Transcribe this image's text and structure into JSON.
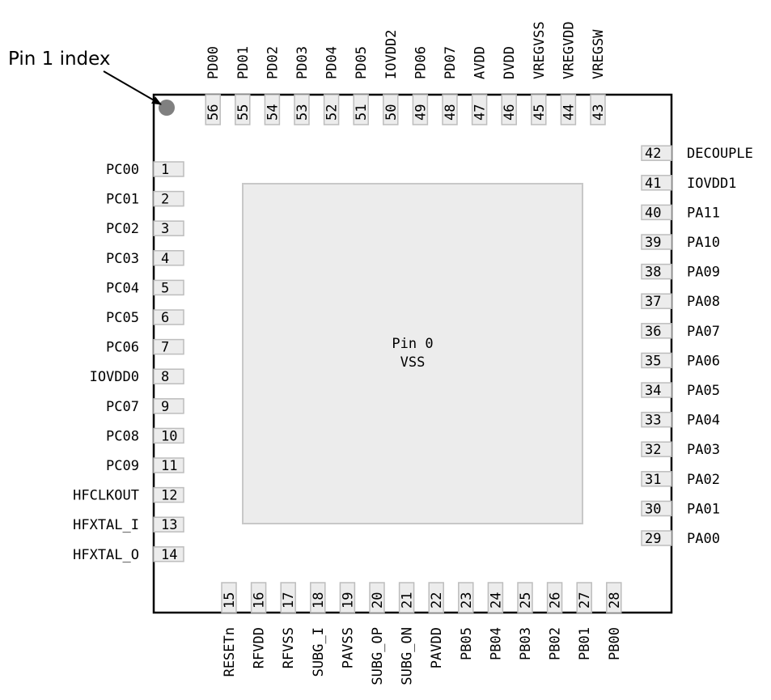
{
  "annotation": {
    "pin1_label": "Pin 1 index"
  },
  "center_pad": {
    "line1": "Pin 0",
    "line2": "VSS"
  },
  "colors": {
    "body_outline": "#000000",
    "pad_fill": "#ececec",
    "pad_stroke": "#c8c8c8",
    "pin_fill": "#ececec",
    "pin_stroke": "#bdbdbd",
    "index_dot": "#808080"
  },
  "pins": {
    "left": [
      {
        "num": "1",
        "name": "PC00"
      },
      {
        "num": "2",
        "name": "PC01"
      },
      {
        "num": "3",
        "name": "PC02"
      },
      {
        "num": "4",
        "name": "PC03"
      },
      {
        "num": "5",
        "name": "PC04"
      },
      {
        "num": "6",
        "name": "PC05"
      },
      {
        "num": "7",
        "name": "PC06"
      },
      {
        "num": "8",
        "name": "IOVDD0"
      },
      {
        "num": "9",
        "name": "PC07"
      },
      {
        "num": "10",
        "name": "PC08"
      },
      {
        "num": "11",
        "name": "PC09"
      },
      {
        "num": "12",
        "name": "HFCLKOUT"
      },
      {
        "num": "13",
        "name": "HFXTAL_I"
      },
      {
        "num": "14",
        "name": "HFXTAL_O"
      }
    ],
    "bottom": [
      {
        "num": "15",
        "name": "RESETn"
      },
      {
        "num": "16",
        "name": "RFVDD"
      },
      {
        "num": "17",
        "name": "RFVSS"
      },
      {
        "num": "18",
        "name": "SUBG_I"
      },
      {
        "num": "19",
        "name": "PAVSS"
      },
      {
        "num": "20",
        "name": "SUBG_OP"
      },
      {
        "num": "21",
        "name": "SUBG_ON"
      },
      {
        "num": "22",
        "name": "PAVDD"
      },
      {
        "num": "23",
        "name": "PB05"
      },
      {
        "num": "24",
        "name": "PB04"
      },
      {
        "num": "25",
        "name": "PB03"
      },
      {
        "num": "26",
        "name": "PB02"
      },
      {
        "num": "27",
        "name": "PB01"
      },
      {
        "num": "28",
        "name": "PB00"
      }
    ],
    "right": [
      {
        "num": "29",
        "name": "PA00"
      },
      {
        "num": "30",
        "name": "PA01"
      },
      {
        "num": "31",
        "name": "PA02"
      },
      {
        "num": "32",
        "name": "PA03"
      },
      {
        "num": "33",
        "name": "PA04"
      },
      {
        "num": "34",
        "name": "PA05"
      },
      {
        "num": "35",
        "name": "PA06"
      },
      {
        "num": "36",
        "name": "PA07"
      },
      {
        "num": "37",
        "name": "PA08"
      },
      {
        "num": "38",
        "name": "PA09"
      },
      {
        "num": "39",
        "name": "PA10"
      },
      {
        "num": "40",
        "name": "PA11"
      },
      {
        "num": "41",
        "name": "IOVDD1"
      },
      {
        "num": "42",
        "name": "DECOUPLE"
      }
    ],
    "top": [
      {
        "num": "43",
        "name": "VREGSW"
      },
      {
        "num": "44",
        "name": "VREGVDD"
      },
      {
        "num": "45",
        "name": "VREGVSS"
      },
      {
        "num": "46",
        "name": "DVDD"
      },
      {
        "num": "47",
        "name": "AVDD"
      },
      {
        "num": "48",
        "name": "PD07"
      },
      {
        "num": "49",
        "name": "PD06"
      },
      {
        "num": "50",
        "name": "IOVDD2"
      },
      {
        "num": "51",
        "name": "PD05"
      },
      {
        "num": "52",
        "name": "PD04"
      },
      {
        "num": "53",
        "name": "PD03"
      },
      {
        "num": "54",
        "name": "PD02"
      },
      {
        "num": "55",
        "name": "PD01"
      },
      {
        "num": "56",
        "name": "PD00"
      }
    ]
  }
}
